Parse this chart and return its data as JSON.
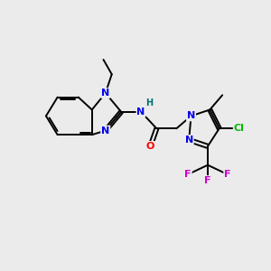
{
  "background_color": "#ebebeb",
  "bond_color": "#000000",
  "atom_colors": {
    "N": "#0000ee",
    "O": "#ff0000",
    "Cl": "#00bb00",
    "F": "#cc00cc",
    "H": "#007070",
    "C": "#000000"
  },
  "figsize": [
    3.0,
    3.0
  ],
  "dpi": 100
}
